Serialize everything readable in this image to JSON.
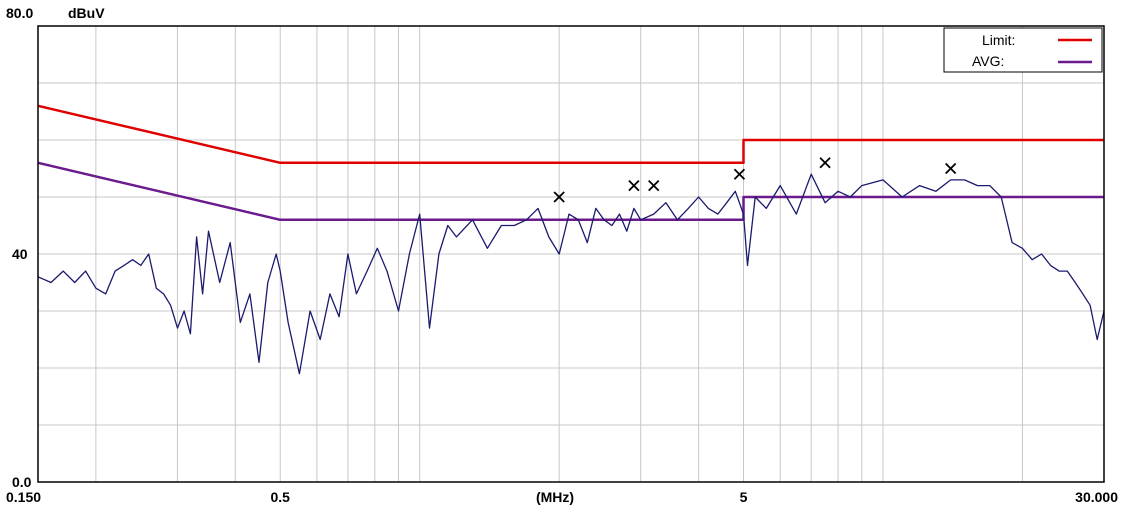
{
  "chart_data": {
    "type": "line",
    "y_top_label": "80.0",
    "y_unit": "dBuV",
    "x_unit_label": "(MHz)",
    "x_scale": "log",
    "xlim": [
      0.15,
      30.0
    ],
    "ylim": [
      0.0,
      80.0
    ],
    "grid": true,
    "legend_position": "top-right",
    "x_tick_labels": [
      {
        "value": 0.15,
        "label": "0.150"
      },
      {
        "value": 0.5,
        "label": "0.5"
      },
      {
        "value": 5,
        "label": "5"
      },
      {
        "value": 30,
        "label": "30.000"
      }
    ],
    "y_tick_labels": [
      {
        "value": 40,
        "label": "40"
      },
      {
        "value": 0,
        "label": "0.0"
      }
    ],
    "legend": [
      {
        "label": "Limit:",
        "color": "#e00000"
      },
      {
        "label": "AVG:",
        "color": "#6a1a8c"
      }
    ],
    "series": [
      {
        "name": "Limit:",
        "color": "#e00000",
        "x": [
          0.15,
          0.5,
          5.0,
          5.0,
          30.0
        ],
        "y": [
          66,
          56,
          56,
          60,
          60
        ]
      },
      {
        "name": "AVG:",
        "color": "#6a1a8c",
        "x": [
          0.15,
          0.5,
          5.0,
          5.0,
          30.0
        ],
        "y": [
          56,
          46,
          46,
          50,
          50
        ]
      },
      {
        "color": "#1a1a6e",
        "x": [
          0.15,
          0.16,
          0.17,
          0.18,
          0.19,
          0.2,
          0.21,
          0.22,
          0.23,
          0.24,
          0.25,
          0.26,
          0.27,
          0.28,
          0.29,
          0.3,
          0.31,
          0.32,
          0.33,
          0.34,
          0.35,
          0.37,
          0.39,
          0.41,
          0.43,
          0.45,
          0.47,
          0.49,
          0.5,
          0.52,
          0.55,
          0.58,
          0.61,
          0.64,
          0.67,
          0.7,
          0.73,
          0.77,
          0.81,
          0.85,
          0.9,
          0.95,
          1.0,
          1.05,
          1.1,
          1.15,
          1.2,
          1.3,
          1.4,
          1.5,
          1.6,
          1.7,
          1.8,
          1.9,
          2.0,
          2.1,
          2.2,
          2.3,
          2.4,
          2.5,
          2.6,
          2.7,
          2.8,
          2.9,
          3.0,
          3.2,
          3.4,
          3.6,
          3.8,
          4.0,
          4.2,
          4.4,
          4.6,
          4.8,
          5.0,
          5.1,
          5.3,
          5.6,
          6.0,
          6.5,
          7.0,
          7.5,
          8.0,
          8.5,
          9.0,
          10.0,
          11.0,
          12.0,
          13.0,
          14.0,
          15.0,
          16.0,
          17.0,
          18.0,
          19.0,
          20.0,
          21.0,
          22.0,
          23.0,
          24.0,
          25.0,
          26.0,
          27.0,
          28.0,
          29.0,
          30.0
        ],
        "y": [
          36,
          35,
          37,
          35,
          37,
          34,
          33,
          37,
          38,
          39,
          38,
          40,
          34,
          33,
          31,
          27,
          30,
          26,
          43,
          33,
          44,
          35,
          42,
          28,
          33,
          21,
          35,
          40,
          37,
          28,
          19,
          30,
          25,
          33,
          29,
          40,
          33,
          37,
          41,
          37,
          30,
          40,
          47,
          27,
          40,
          45,
          43,
          46,
          41,
          45,
          45,
          46,
          48,
          43,
          40,
          47,
          46,
          42,
          48,
          46,
          45,
          47,
          44,
          48,
          46,
          47,
          49,
          46,
          48,
          50,
          48,
          47,
          49,
          51,
          47,
          38,
          50,
          48,
          52,
          47,
          54,
          49,
          51,
          50,
          52,
          53,
          50,
          52,
          51,
          53,
          53,
          52,
          52,
          50,
          42,
          41,
          39,
          40,
          38,
          37,
          37,
          35,
          33,
          31,
          25,
          30
        ]
      }
    ],
    "markers": {
      "symbol": "x",
      "x": [
        2.0,
        2.9,
        3.2,
        4.9,
        7.5,
        14.0
      ],
      "y": [
        50,
        52,
        52,
        54,
        56,
        55
      ]
    }
  }
}
